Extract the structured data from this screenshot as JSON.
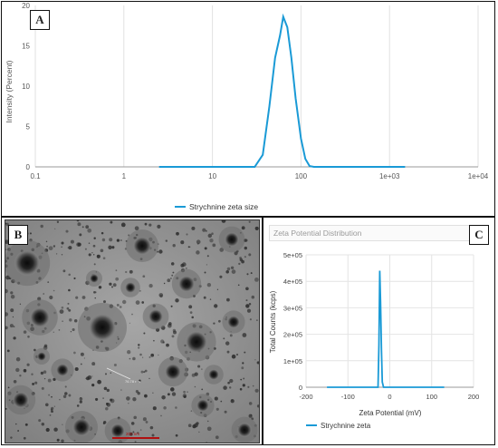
{
  "panels": {
    "a": {
      "letter": "A"
    },
    "b": {
      "letter": "B",
      "scale_bar_label": "200 nm",
      "measure_label": "76.78 nm"
    },
    "c": {
      "letter": "C",
      "header_title": "Zeta Potential Distribution"
    }
  },
  "chart_data": [
    {
      "type": "line",
      "panel": "A",
      "xlabel": "",
      "ylabel": "Intensity (Percent)",
      "x_scale": "log",
      "xlim": [
        0.1,
        10000
      ],
      "ylim": [
        0,
        20
      ],
      "x_tick_labels": [
        "0.1",
        "1",
        "10",
        "100",
        "1e+03",
        "1e+04"
      ],
      "x_tick_values": [
        0.1,
        1,
        10,
        100,
        1000,
        10000
      ],
      "y_tick_values": [
        0,
        5,
        10,
        15,
        20
      ],
      "grid": "vertical",
      "legend_position": "bottom-center",
      "series": [
        {
          "name": "Strychnine zeta size",
          "color": "#1a9ad6",
          "x": [
            2.5,
            30,
            37,
            44,
            51,
            58,
            63,
            70,
            78,
            87,
            100,
            112,
            125,
            140,
            170,
            1500
          ],
          "y": [
            0,
            0,
            1.5,
            7.5,
            13.5,
            16.3,
            18.6,
            17.3,
            13.5,
            8.5,
            3.5,
            1.0,
            0.1,
            0,
            0,
            0
          ]
        }
      ]
    },
    {
      "type": "line",
      "panel": "C",
      "title": "Zeta Potential Distribution",
      "xlabel": "Zeta Potential (mV)",
      "ylabel": "Total Counts (kcps)",
      "xlim": [
        -200,
        200
      ],
      "ylim": [
        0,
        500000
      ],
      "x_tick_labels": [
        "-200",
        "-100",
        "0",
        "100",
        "200"
      ],
      "x_tick_values": [
        -200,
        -100,
        0,
        100,
        200
      ],
      "y_tick_labels": [
        "0",
        "1e+05",
        "2e+05",
        "3e+05",
        "4e+05",
        "5e+05"
      ],
      "y_tick_values": [
        0,
        100000,
        200000,
        300000,
        400000,
        500000
      ],
      "grid": "both",
      "legend_position": "bottom-center",
      "series": [
        {
          "name": "Strychnine zeta",
          "color": "#1a9ad6",
          "x": [
            -150,
            -35,
            -28,
            -26,
            -24,
            -22,
            -20,
            -18,
            -15,
            130
          ],
          "y": [
            0,
            0,
            0,
            160000,
            440000,
            320000,
            140000,
            20000,
            0,
            0
          ]
        }
      ]
    }
  ]
}
